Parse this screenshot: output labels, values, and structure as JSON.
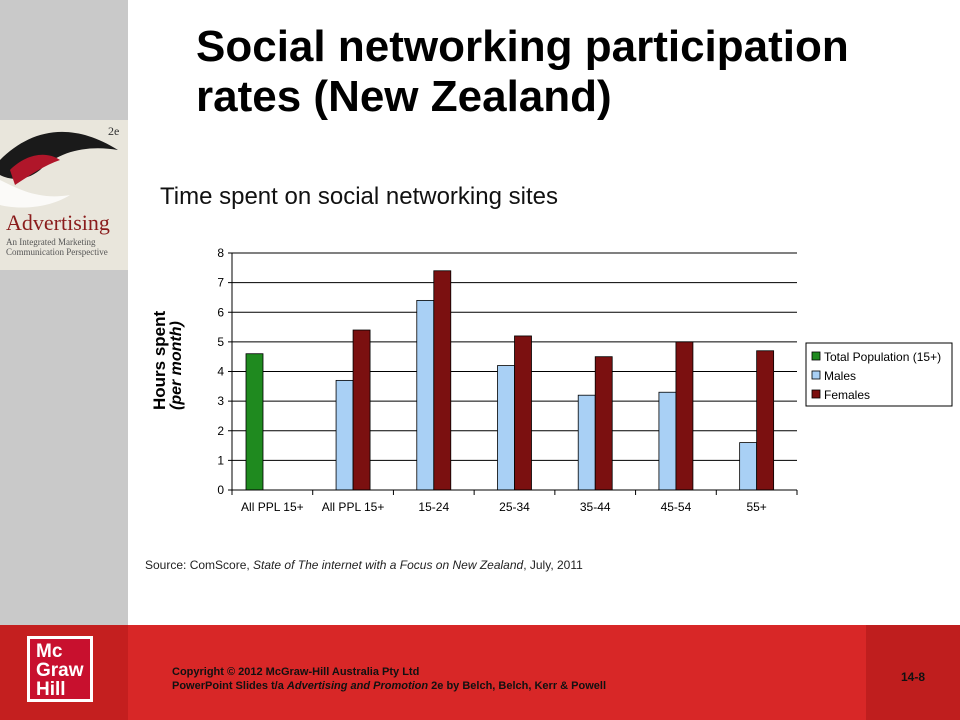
{
  "slide": {
    "title": "Social networking participation rates (New Zealand)",
    "chart_heading": "Time spent on social networking sites",
    "ylabel_line1": "Hours spent",
    "ylabel_line2": "(per month)",
    "source_prefix": "Source: ComScore, ",
    "source_italic": "State of The internet with a Focus on New Zealand",
    "source_suffix": ", July, 2011"
  },
  "book": {
    "title": "Advertising",
    "subtitle": "An Integrated Marketing Communication Perspective",
    "edition": "2e"
  },
  "footer": {
    "logo_lines": [
      "Mc",
      "Graw",
      "Hill"
    ],
    "copyright_line1": "Copyright © 2012 McGraw-Hill Australia Pty Ltd",
    "copyright_line2_prefix": "PowerPoint Slides t/a ",
    "copyright_line2_italic": "Advertising and Promotion",
    "copyright_line2_suffix": " 2e by Belch, Belch, Kerr & Powell",
    "page_number": "14-8"
  },
  "colors": {
    "total": "#1f8a1f",
    "males": "#a9d0f5",
    "females": "#7b1010"
  },
  "chart_data": {
    "type": "bar",
    "categories": [
      "All PPL 15+",
      "All PPL 15+",
      "15-24",
      "25-34",
      "35-44",
      "45-54",
      "55+"
    ],
    "series": [
      {
        "name": "Total Population (15+)",
        "values": [
          4.6,
          null,
          null,
          null,
          null,
          null,
          null
        ]
      },
      {
        "name": "Males",
        "values": [
          null,
          3.7,
          6.4,
          4.2,
          3.2,
          3.3,
          1.6
        ]
      },
      {
        "name": "Females",
        "values": [
          null,
          5.4,
          7.4,
          5.2,
          4.5,
          5.0,
          4.7
        ]
      }
    ],
    "yticks": [
      0,
      1,
      2,
      3,
      4,
      5,
      6,
      7,
      8
    ],
    "ylim": [
      0,
      8
    ],
    "grid": true,
    "legend": "right"
  }
}
